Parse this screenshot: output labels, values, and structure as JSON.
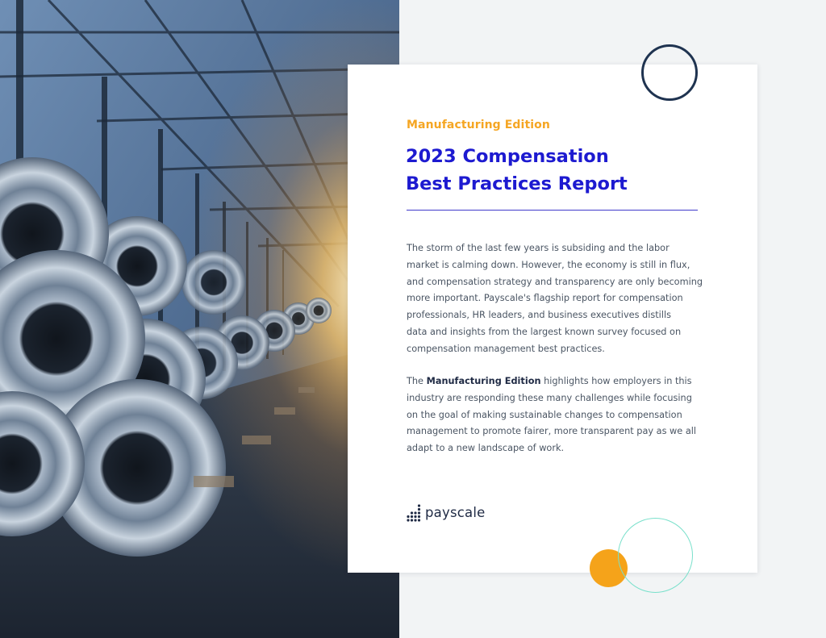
{
  "report": {
    "edition": "Manufacturing Edition",
    "title_line1": "2023 Compensation",
    "title_line2": "Best Practices Report"
  },
  "intro": {
    "p1_lines": [
      "The storm of the last few years is subsiding and the labor",
      "market is calming down. However, the economy is still in flux,",
      "and compensation strategy and transparency are only becoming",
      "more important. Payscale's flagship report for compensation",
      "professionals, HR leaders, and business executives distills",
      "data and insights from the largest known survey focused on",
      "compensation management best practices."
    ],
    "p2_prefix": "The ",
    "p2_strong": "Manufacturing Edition",
    "p2_line1_rest": " highlights how employers in this",
    "p2_lines": [
      "industry are responding these many challenges while focusing",
      "on the goal of making sustainable changes to compensation",
      "management to promote fairer, more transparent pay as we all",
      "adapt to a new landscape of work."
    ]
  },
  "brand": {
    "name": "payscale",
    "logo_icon": "payscale-bars-icon"
  },
  "colors": {
    "accent_orange": "#f5a623",
    "title_blue": "#1d1ad0",
    "navy": "#1f3350",
    "mint": "#79e0cb",
    "body_text": "#4a5563"
  }
}
